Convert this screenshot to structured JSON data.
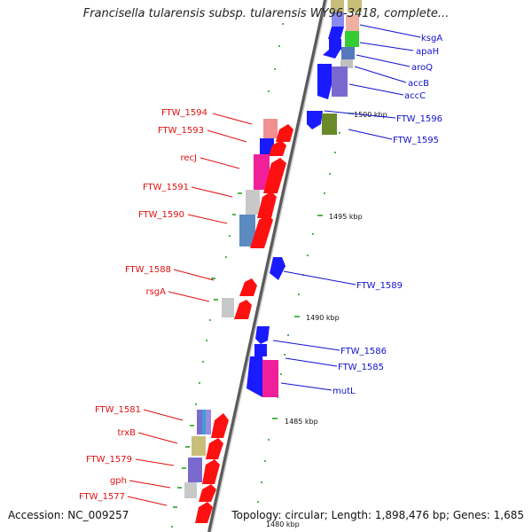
{
  "title": "Francisella tularensis subsp. tularensis WY96-3418, complete...",
  "footer": {
    "accession": "Accession: NC_009257",
    "summary": "Topology: circular; Length: 1,898,476 bp; Genes: 1,685"
  },
  "colors": {
    "red_label": "#e01010",
    "blue_label": "#1010d0",
    "backbone": "#888888",
    "tick": "#1a9a1a"
  },
  "scale_labels": [
    "1500 kbp",
    "1495 kbp",
    "1490 kbp",
    "1485 kbp",
    "1480 kbp"
  ],
  "left_labels": [
    "FTW_1594",
    "FTW_1593",
    "recJ",
    "FTW_1591",
    "FTW_1590",
    "FTW_1588",
    "rsgA",
    "FTW_1581",
    "trxB",
    "FTW_1579",
    "gph",
    "FTW_1577"
  ],
  "right_labels": [
    "ksgA",
    "apaH",
    "aroQ",
    "accB",
    "accC",
    "FTW_1596",
    "FTW_1595",
    "FTW_1589",
    "FTW_1586",
    "FTW_1585",
    "mutL"
  ]
}
